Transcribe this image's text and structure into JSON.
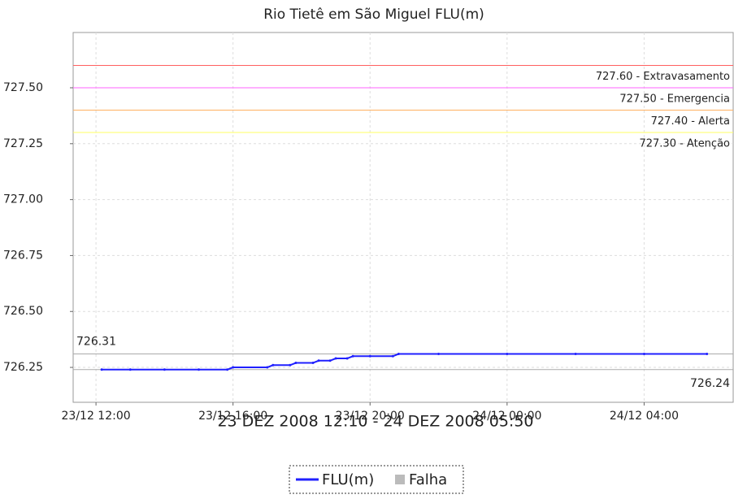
{
  "chart_data": {
    "type": "line",
    "title": "Rio Tietê em São Miguel FLU(m)",
    "subtitle": "23 DEZ 2008 12:10 - 24 DEZ 2008 05:50",
    "x": [
      "23/12 12:10",
      "23/12 13:00",
      "23/12 14:00",
      "23/12 15:00",
      "23/12 15:50",
      "23/12 16:00",
      "23/12 17:00",
      "23/12 17:10",
      "23/12 17:40",
      "23/12 17:50",
      "23/12 18:20",
      "23/12 18:30",
      "23/12 18:50",
      "23/12 19:00",
      "23/12 19:20",
      "23/12 19:30",
      "23/12 20:00",
      "23/12 20:40",
      "23/12 20:50",
      "23/12 22:00",
      "24/12 00:00",
      "24/12 02:00",
      "24/12 04:00",
      "24/12 05:50"
    ],
    "series": [
      {
        "name": "FLU(m)",
        "color": "#2020ff",
        "values": [
          726.24,
          726.24,
          726.24,
          726.24,
          726.24,
          726.25,
          726.25,
          726.26,
          726.26,
          726.27,
          726.27,
          726.28,
          726.28,
          726.29,
          726.29,
          726.3,
          726.3,
          726.3,
          726.31,
          726.31,
          726.31,
          726.31,
          726.31,
          726.31
        ]
      }
    ],
    "fault_legend": {
      "name": "Falha",
      "color": "#bbbbbb"
    },
    "xlim": [
      "23/12 11:20",
      "24/12 06:36"
    ],
    "xticks": [
      "23/12 12:00",
      "23/12 16:00",
      "23/12 20:00",
      "24/12 00:00",
      "24/12 04:00"
    ],
    "ylim": [
      726.094,
      727.747
    ],
    "yticks": [
      {
        "value": 726.25,
        "label": "726.25"
      },
      {
        "value": 726.5,
        "label": "726.50"
      },
      {
        "value": 726.75,
        "label": "726.75"
      },
      {
        "value": 727,
        "label": "727.00"
      },
      {
        "value": 727.25,
        "label": "727.25"
      },
      {
        "value": 727.5,
        "label": "727.50"
      }
    ],
    "thresholds": [
      {
        "value": 727.6,
        "label": "727.60 - Extravasamento",
        "color": "#ff6060"
      },
      {
        "value": 727.5,
        "label": "727.50 - Emergencia",
        "color": "#ff60ff"
      },
      {
        "value": 727.4,
        "label": "727.40 - Alerta",
        "color": "#ffb060"
      },
      {
        "value": 727.3,
        "label": "727.30 - Atenção",
        "color": "#ffff60"
      }
    ],
    "reference_lines": [
      726.31,
      726.24
    ],
    "grid": true
  }
}
